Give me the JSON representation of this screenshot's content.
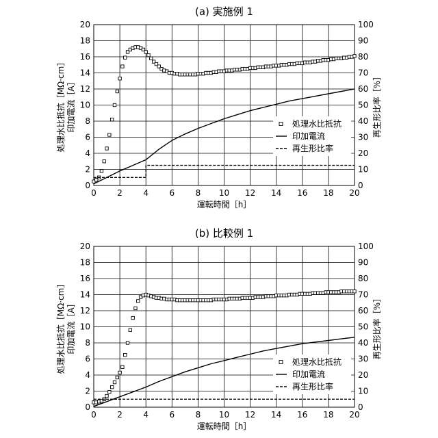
{
  "chart_data": [
    {
      "type": "line",
      "title": "(a) 実施例 1",
      "xlabel": "運転時間［h］",
      "ylabel_left": "処理水比抵抗［MΩ·cm］\n印加電流［A］",
      "ylabel_right": "再生形比率［%］",
      "xlim": [
        0,
        20
      ],
      "x_ticks": [
        0,
        2,
        4,
        6,
        8,
        10,
        12,
        14,
        16,
        18,
        20
      ],
      "ylim_left": [
        0,
        20
      ],
      "y_ticks_left": [
        0,
        2,
        4,
        6,
        8,
        10,
        12,
        14,
        16,
        18,
        20
      ],
      "ylim_right": [
        0,
        100
      ],
      "y_ticks_right": [
        0,
        10,
        20,
        30,
        40,
        50,
        60,
        70,
        80,
        90,
        100
      ],
      "grid": true,
      "legend_position": "lower-right",
      "series": [
        {
          "name": "処理水比抵抗",
          "style": "markers",
          "marker": "open-square",
          "axis": "left",
          "x": [
            0.0,
            0.2,
            0.4,
            0.6,
            0.8,
            1.0,
            1.2,
            1.4,
            1.6,
            1.8,
            2.0,
            2.2,
            2.4,
            2.6,
            2.8,
            3.0,
            3.2,
            3.4,
            3.6,
            3.8,
            4.0,
            4.2,
            4.4,
            4.6,
            4.8,
            5.0,
            5.2,
            5.4,
            5.6,
            5.8,
            6.0,
            6.2,
            6.4,
            6.6,
            6.8,
            7.0,
            7.2,
            7.4,
            7.6,
            7.8,
            8.0,
            8.2,
            8.4,
            8.6,
            8.8,
            9.0,
            9.2,
            9.4,
            9.6,
            9.8,
            10.0,
            10.2,
            10.4,
            10.6,
            10.8,
            11.0,
            11.2,
            11.4,
            11.6,
            11.8,
            12.0,
            12.2,
            12.4,
            12.6,
            12.8,
            13.0,
            13.2,
            13.4,
            13.6,
            13.8,
            14.0,
            14.2,
            14.4,
            14.6,
            14.8,
            15.0,
            15.2,
            15.4,
            15.6,
            15.8,
            16.0,
            16.2,
            16.4,
            16.6,
            16.8,
            17.0,
            17.2,
            17.4,
            17.6,
            17.8,
            18.0,
            18.2,
            18.4,
            18.6,
            18.8,
            19.0,
            19.2,
            19.4,
            19.6,
            19.8,
            20.0
          ],
          "y": [
            0.5,
            0.7,
            1.0,
            1.8,
            3.0,
            4.6,
            6.3,
            8.2,
            10.0,
            11.7,
            13.3,
            14.8,
            15.9,
            16.6,
            16.9,
            17.1,
            17.2,
            17.2,
            17.1,
            16.9,
            16.6,
            16.2,
            15.8,
            15.4,
            15.1,
            14.8,
            14.5,
            14.3,
            14.2,
            14.0,
            14.0,
            13.9,
            13.9,
            13.8,
            13.8,
            13.8,
            13.8,
            13.8,
            13.8,
            13.8,
            13.9,
            13.9,
            13.9,
            14.0,
            14.0,
            14.0,
            14.1,
            14.1,
            14.2,
            14.2,
            14.2,
            14.3,
            14.3,
            14.3,
            14.4,
            14.4,
            14.4,
            14.5,
            14.5,
            14.5,
            14.6,
            14.6,
            14.6,
            14.7,
            14.7,
            14.7,
            14.8,
            14.8,
            14.8,
            14.9,
            14.9,
            14.9,
            15.0,
            15.0,
            15.0,
            15.1,
            15.1,
            15.1,
            15.2,
            15.2,
            15.2,
            15.3,
            15.3,
            15.3,
            15.4,
            15.4,
            15.5,
            15.5,
            15.6,
            15.6,
            15.6,
            15.7,
            15.7,
            15.8,
            15.8,
            15.8,
            15.9,
            15.9,
            16.0,
            16.0,
            16.1
          ]
        },
        {
          "name": "印加電流",
          "style": "solid",
          "axis": "left",
          "x": [
            0,
            1,
            2,
            3,
            4,
            5,
            6,
            7,
            8,
            9,
            10,
            11,
            12,
            13,
            14,
            15,
            16,
            17,
            18,
            19,
            20
          ],
          "y": [
            0.2,
            1.0,
            1.8,
            2.5,
            3.2,
            4.5,
            5.6,
            6.4,
            7.1,
            7.7,
            8.3,
            8.8,
            9.3,
            9.7,
            10.1,
            10.5,
            10.8,
            11.1,
            11.4,
            11.7,
            12.0
          ]
        },
        {
          "name": "再生形比率",
          "style": "dashed",
          "axis": "right",
          "x": [
            0,
            4,
            4,
            20
          ],
          "y": [
            5,
            5,
            12.5,
            12.5
          ]
        }
      ]
    },
    {
      "type": "line",
      "title": "(b) 比較例 1",
      "xlabel": "運転時間［h］",
      "ylabel_left": "処理水比抵抗［MΩ·cm］\n印加電流［A］",
      "ylabel_right": "再生形比率［%］",
      "xlim": [
        0,
        20
      ],
      "x_ticks": [
        0,
        2,
        4,
        6,
        8,
        10,
        12,
        14,
        16,
        18,
        20
      ],
      "ylim_left": [
        0,
        20
      ],
      "y_ticks_left": [
        0,
        2,
        4,
        6,
        8,
        10,
        12,
        14,
        16,
        18,
        20
      ],
      "ylim_right": [
        0,
        100
      ],
      "y_ticks_right": [
        0,
        10,
        20,
        30,
        40,
        50,
        60,
        70,
        80,
        90,
        100
      ],
      "grid": true,
      "legend_position": "lower-right",
      "series": [
        {
          "name": "処理水比抵抗",
          "style": "markers",
          "marker": "open-square",
          "axis": "left",
          "x": [
            0.0,
            0.2,
            0.4,
            0.6,
            0.8,
            1.0,
            1.2,
            1.4,
            1.6,
            1.8,
            2.0,
            2.2,
            2.4,
            2.6,
            2.8,
            3.0,
            3.2,
            3.4,
            3.6,
            3.8,
            4.0,
            4.2,
            4.4,
            4.6,
            4.8,
            5.0,
            5.2,
            5.4,
            5.6,
            5.8,
            6.0,
            6.2,
            6.4,
            6.6,
            6.8,
            7.0,
            7.2,
            7.4,
            7.6,
            7.8,
            8.0,
            8.2,
            8.4,
            8.6,
            8.8,
            9.0,
            9.2,
            9.4,
            9.6,
            9.8,
            10.0,
            10.2,
            10.4,
            10.6,
            10.8,
            11.0,
            11.2,
            11.4,
            11.6,
            11.8,
            12.0,
            12.2,
            12.4,
            12.6,
            12.8,
            13.0,
            13.2,
            13.4,
            13.6,
            13.8,
            14.0,
            14.2,
            14.4,
            14.6,
            14.8,
            15.0,
            15.2,
            15.4,
            15.6,
            15.8,
            16.0,
            16.2,
            16.4,
            16.6,
            16.8,
            17.0,
            17.2,
            17.4,
            17.6,
            17.8,
            18.0,
            18.2,
            18.4,
            18.6,
            18.8,
            19.0,
            19.2,
            19.4,
            19.6,
            19.8,
            20.0
          ],
          "y": [
            0.6,
            0.6,
            0.7,
            0.8,
            1.0,
            1.4,
            1.9,
            2.5,
            3.1,
            3.7,
            4.3,
            5.0,
            6.5,
            8.0,
            9.6,
            11.1,
            12.3,
            13.2,
            13.7,
            13.9,
            14.0,
            13.9,
            13.8,
            13.7,
            13.6,
            13.6,
            13.5,
            13.5,
            13.4,
            13.4,
            13.4,
            13.4,
            13.3,
            13.3,
            13.3,
            13.3,
            13.3,
            13.3,
            13.3,
            13.3,
            13.3,
            13.3,
            13.3,
            13.3,
            13.3,
            13.3,
            13.4,
            13.4,
            13.4,
            13.4,
            13.4,
            13.4,
            13.5,
            13.5,
            13.5,
            13.5,
            13.5,
            13.6,
            13.6,
            13.6,
            13.6,
            13.6,
            13.7,
            13.7,
            13.7,
            13.7,
            13.8,
            13.8,
            13.8,
            13.8,
            13.9,
            13.9,
            13.9,
            13.9,
            13.9,
            14.0,
            14.0,
            14.0,
            14.0,
            14.1,
            14.1,
            14.1,
            14.1,
            14.1,
            14.2,
            14.2,
            14.2,
            14.2,
            14.2,
            14.3,
            14.3,
            14.3,
            14.3,
            14.3,
            14.3,
            14.4,
            14.4,
            14.4,
            14.4,
            14.4,
            14.4
          ]
        },
        {
          "name": "印加電流",
          "style": "solid",
          "axis": "left",
          "x": [
            0,
            1,
            2,
            3,
            4,
            5,
            6,
            7,
            8,
            9,
            10,
            11,
            12,
            13,
            14,
            15,
            16,
            17,
            18,
            19,
            20
          ],
          "y": [
            0.1,
            0.7,
            1.3,
            1.9,
            2.5,
            3.2,
            3.8,
            4.4,
            4.9,
            5.4,
            5.8,
            6.2,
            6.6,
            7.0,
            7.3,
            7.6,
            7.9,
            8.1,
            8.3,
            8.5,
            8.7
          ]
        },
        {
          "name": "再生形比率",
          "style": "dashed",
          "axis": "right",
          "x": [
            0,
            20
          ],
          "y": [
            5,
            5
          ]
        }
      ]
    }
  ]
}
